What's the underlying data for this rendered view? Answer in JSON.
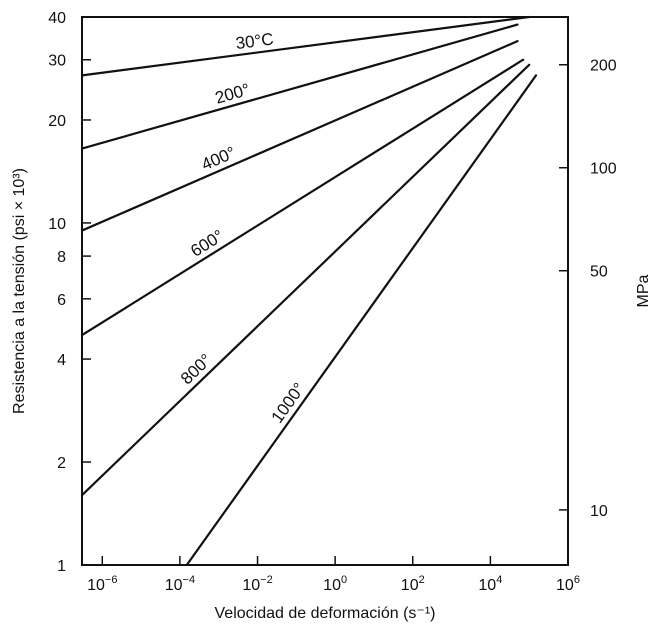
{
  "chart_data": {
    "type": "line",
    "title": "",
    "xlabel": "Velocidad de deformación (s⁻¹)",
    "ylabel": "Resistencia a la tensión (psi × 10³)",
    "y2label": "MPa",
    "x_scale": "log",
    "y_scale": "log",
    "xlim": [
      3e-07,
      1000000.0
    ],
    "ylim": [
      1,
      40
    ],
    "y2lim": [
      6.9,
      275.8
    ],
    "x_ticks": [
      {
        "value": 1e-06,
        "base": "10",
        "exp": "−6"
      },
      {
        "value": 0.0001,
        "base": "10",
        "exp": "−4"
      },
      {
        "value": 0.01,
        "base": "10",
        "exp": "−2"
      },
      {
        "value": 1,
        "base": "10",
        "exp": "0"
      },
      {
        "value": 100.0,
        "base": "10",
        "exp": "2"
      },
      {
        "value": 10000.0,
        "base": "10",
        "exp": "4"
      },
      {
        "value": 1000000.0,
        "base": "10",
        "exp": "6"
      }
    ],
    "y_ticks": [
      {
        "value": 1,
        "label": "1"
      },
      {
        "value": 2,
        "label": "2"
      },
      {
        "value": 4,
        "label": "4"
      },
      {
        "value": 6,
        "label": "6"
      },
      {
        "value": 8,
        "label": "8"
      },
      {
        "value": 10,
        "label": "10"
      },
      {
        "value": 20,
        "label": "20"
      },
      {
        "value": 30,
        "label": "30"
      },
      {
        "value": 40,
        "label": "40"
      }
    ],
    "y2_ticks": [
      {
        "value": 10,
        "label": "10"
      },
      {
        "value": 50,
        "label": "50"
      },
      {
        "value": 100,
        "label": "100"
      },
      {
        "value": 200,
        "label": "200"
      }
    ],
    "grid": false,
    "legend": "none",
    "series": [
      {
        "name": "30°C",
        "x": [
          3e-07,
          100000.0
        ],
        "y": [
          27,
          40
        ],
        "label_at": 0.003
      },
      {
        "name": "200°",
        "x": [
          3e-07,
          50000.0
        ],
        "y": [
          16.5,
          38
        ],
        "label_at": 0.001
      },
      {
        "name": "400°",
        "x": [
          3e-07,
          50000.0
        ],
        "y": [
          9.5,
          34
        ],
        "label_at": 0.0005
      },
      {
        "name": "600°",
        "x": [
          3e-07,
          70000.0
        ],
        "y": [
          4.7,
          30
        ],
        "label_at": 0.0003
      },
      {
        "name": "800°",
        "x": [
          3e-07,
          100000.0
        ],
        "y": [
          1.6,
          29
        ],
        "label_at": 0.0002
      },
      {
        "name": "1000°",
        "x": [
          0.00015,
          150000.0
        ],
        "y": [
          1,
          27
        ],
        "label_at": 0.05
      }
    ]
  }
}
